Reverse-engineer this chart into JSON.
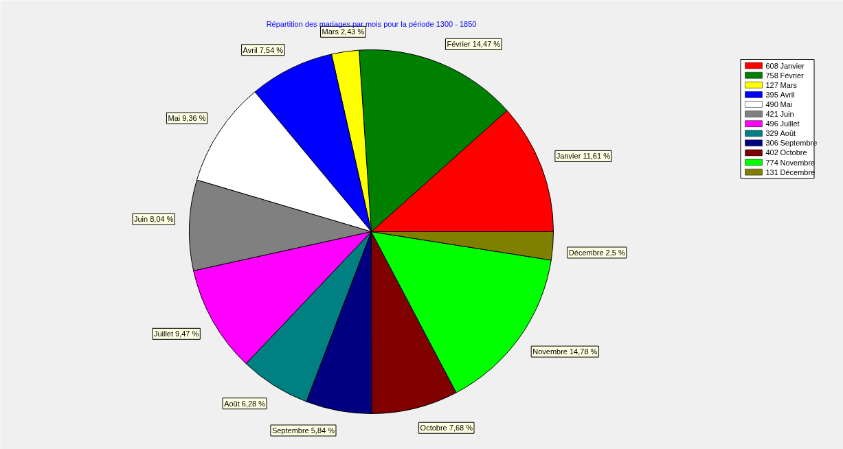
{
  "chart_data": {
    "type": "pie",
    "title": "Répartition des mariages par mois pour la période 1300 - 1850",
    "categories": [
      "Janvier",
      "Février",
      "Mars",
      "Avril",
      "Mai",
      "Juin",
      "Juillet",
      "Août",
      "Septembre",
      "Octobre",
      "Novembre",
      "Décembre"
    ],
    "values": [
      11.61,
      14.47,
      2.43,
      7.54,
      9.36,
      8.04,
      9.47,
      6.28,
      5.84,
      7.68,
      14.78,
      2.5
    ],
    "value_labels": [
      "11,61 %",
      "14,47 %",
      "2,43 %",
      "7,54 %",
      "9,36 %",
      "8,04 %",
      "9,47 %",
      "6,28 %",
      "5,84 %",
      "7,68 %",
      "14,78 %",
      "2,5 %"
    ],
    "colors": [
      "#ff0000",
      "#008000",
      "#ffff00",
      "#0000ff",
      "#ffffff",
      "#808080",
      "#ff00ff",
      "#008080",
      "#000080",
      "#800000",
      "#00ff00",
      "#808000"
    ],
    "annotations": [
      "608",
      "758",
      "127",
      "395",
      "490",
      "421",
      "496",
      "329",
      "306",
      "402",
      "774",
      "131"
    ],
    "legend": "top right"
  }
}
